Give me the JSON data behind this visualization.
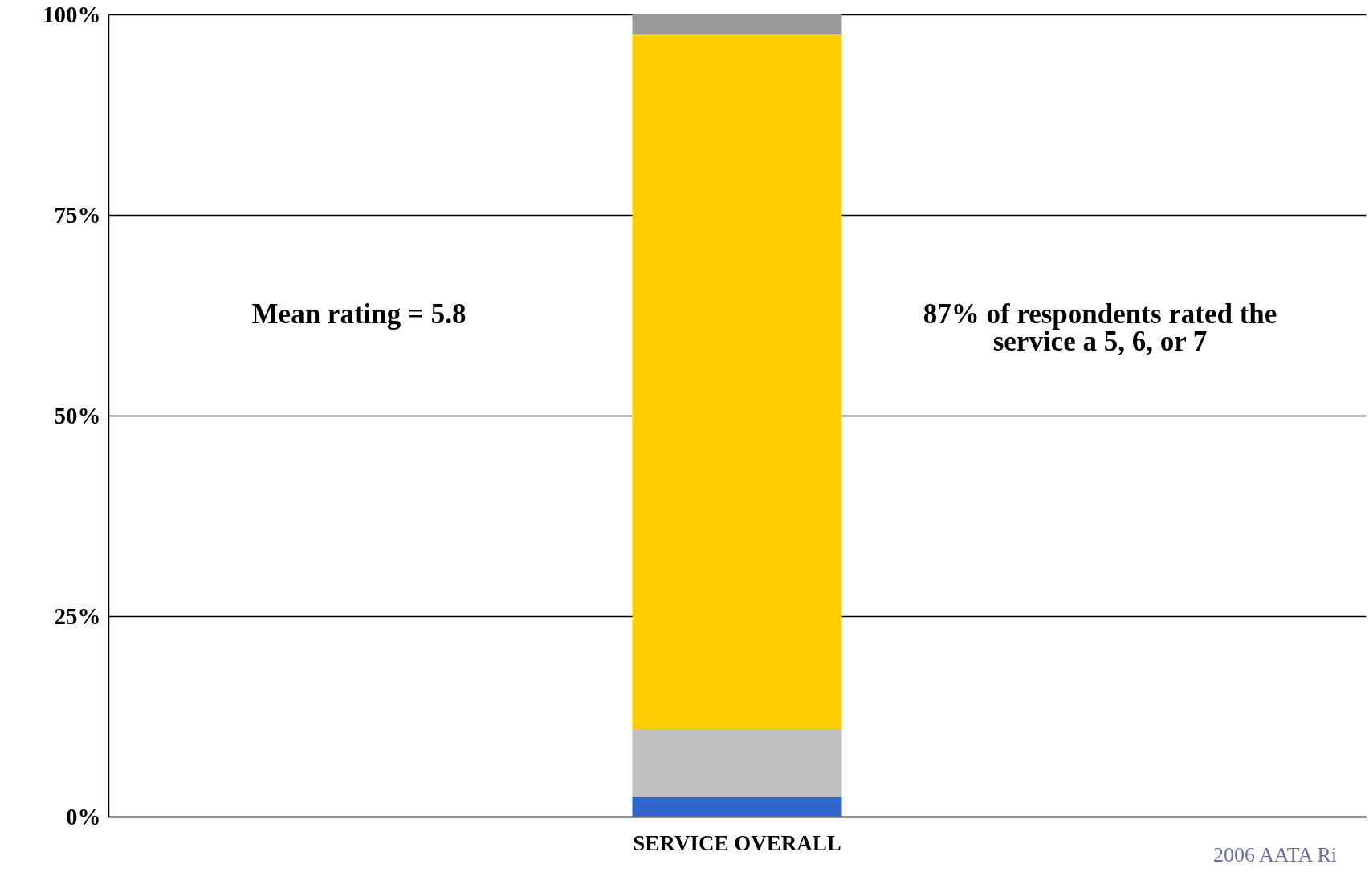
{
  "chart_data": {
    "type": "bar",
    "stacked": true,
    "categories": [
      "SERVICE OVERALL"
    ],
    "series": [
      {
        "color": "#3366cc",
        "values": [
          2.5
        ]
      },
      {
        "color": "#c0c0c0",
        "values": [
          8.3
        ]
      },
      {
        "color": "#ffcc00",
        "values": [
          86.7
        ]
      },
      {
        "color": "#999999",
        "values": [
          2.5
        ]
      }
    ],
    "ylim": [
      0,
      100
    ],
    "yticks": [
      {
        "value": 0,
        "label": "0%"
      },
      {
        "value": 25,
        "label": "25%"
      },
      {
        "value": 50,
        "label": "50%"
      },
      {
        "value": 75,
        "label": "75%"
      },
      {
        "value": 100,
        "label": "100%"
      }
    ],
    "grid": "y",
    "annotations": [
      "Mean rating = 5.8",
      "87% of respondents rated the service a 5, 6, or 7",
      "2006 AATA Ri"
    ]
  }
}
